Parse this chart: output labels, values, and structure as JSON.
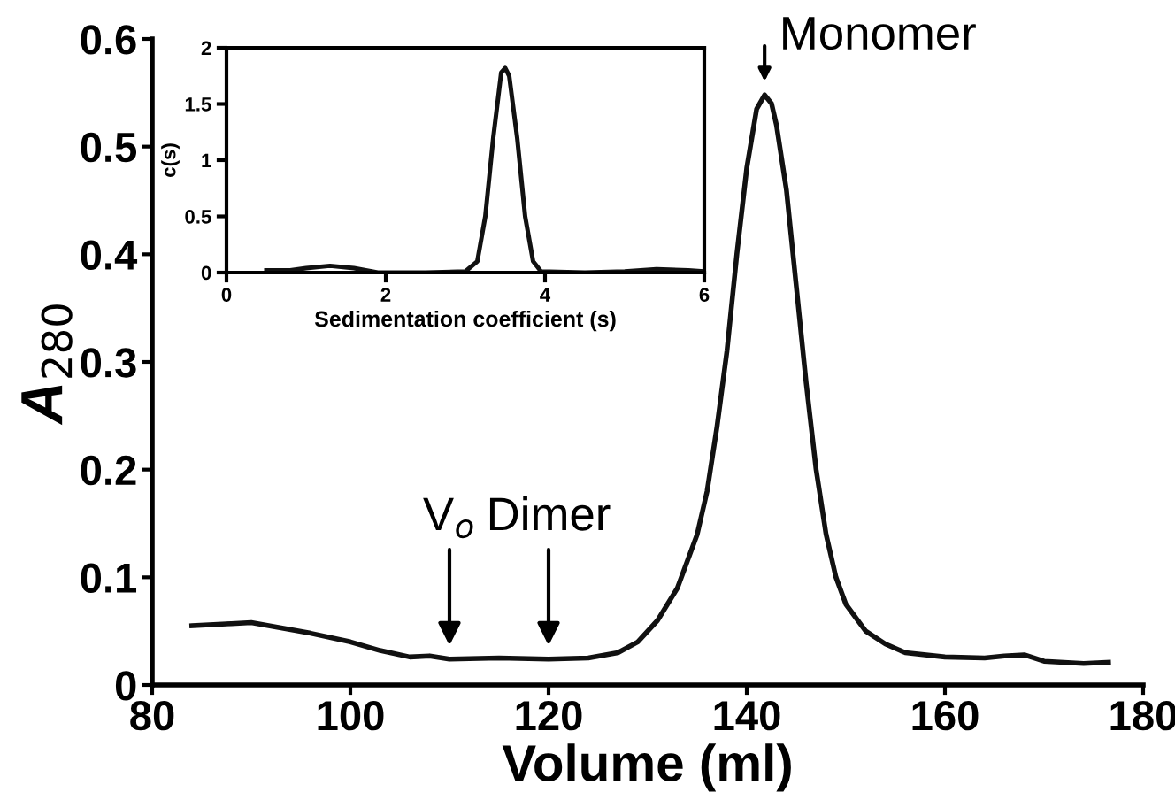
{
  "chart_data": [
    {
      "type": "line",
      "xlabel": "Volume (ml)",
      "ylabel": "A$_{280}$",
      "xlim": [
        80,
        180
      ],
      "ylim": [
        0,
        0.6
      ],
      "xticks": [
        80,
        100,
        120,
        140,
        160,
        180
      ],
      "yticks": [
        0,
        0.1,
        0.2,
        0.3,
        0.4,
        0.5,
        0.6
      ],
      "grid": false,
      "series": [
        {
          "color": "#111111",
          "x": [
            84,
            88,
            90,
            93,
            96,
            100,
            103,
            106,
            108,
            110,
            115,
            120,
            124,
            127,
            129,
            131,
            133,
            135,
            136,
            137,
            138,
            139,
            140,
            141,
            141.8,
            142.5,
            143,
            144,
            145,
            146,
            147,
            148,
            149,
            150,
            152,
            154,
            156,
            160,
            164,
            166,
            168,
            170,
            174,
            176.5
          ],
          "values": [
            0.055,
            0.057,
            0.058,
            0.053,
            0.048,
            0.04,
            0.032,
            0.026,
            0.027,
            0.024,
            0.025,
            0.024,
            0.025,
            0.03,
            0.04,
            0.06,
            0.09,
            0.14,
            0.18,
            0.24,
            0.31,
            0.4,
            0.48,
            0.535,
            0.548,
            0.54,
            0.52,
            0.46,
            0.37,
            0.28,
            0.2,
            0.14,
            0.1,
            0.075,
            0.05,
            0.038,
            0.03,
            0.026,
            0.025,
            0.027,
            0.028,
            0.022,
            0.02,
            0.021
          ]
        }
      ],
      "annotations": [
        {
          "text": "Monomer",
          "x": 141.8,
          "y": 0.548
        },
        {
          "text": "Dimer",
          "x": 120,
          "y": 0.024
        },
        {
          "text": "V$_{o}$",
          "x": 110,
          "y": 0.024
        }
      ]
    },
    {
      "type": "line",
      "xlabel": "Sedimentation coefficient (s)",
      "ylabel": "c(s)",
      "xlim": [
        0,
        6
      ],
      "ylim": [
        0,
        2
      ],
      "xticks": [
        0,
        2,
        4,
        6
      ],
      "yticks": [
        0,
        0.5,
        1,
        1.5,
        2
      ],
      "grid": false,
      "series": [
        {
          "color": "#111111",
          "x": [
            0.5,
            0.8,
            1.0,
            1.3,
            1.6,
            1.9,
            2.5,
            3.0,
            3.15,
            3.25,
            3.35,
            3.45,
            3.5,
            3.55,
            3.65,
            3.75,
            3.85,
            3.95,
            4.5,
            5.0,
            5.4,
            5.8,
            6.0
          ],
          "values": [
            0.02,
            0.02,
            0.04,
            0.06,
            0.04,
            0.0,
            0.0,
            0.01,
            0.1,
            0.5,
            1.2,
            1.78,
            1.82,
            1.75,
            1.2,
            0.5,
            0.1,
            0.01,
            0.0,
            0.01,
            0.03,
            0.02,
            0.01
          ]
        }
      ]
    }
  ]
}
